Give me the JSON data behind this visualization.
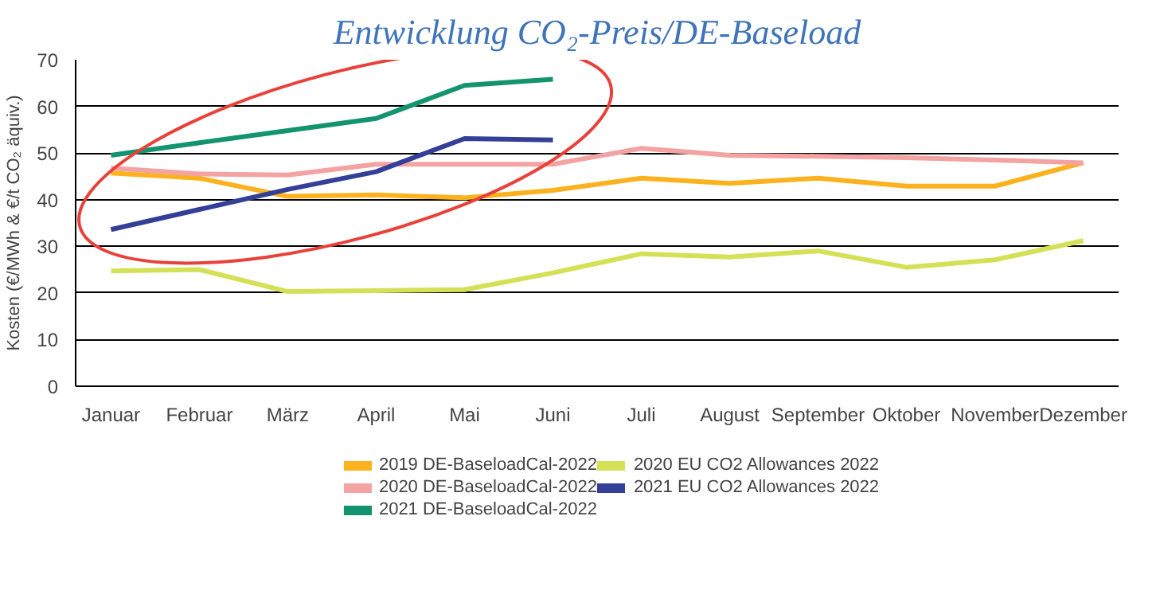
{
  "chart_data": {
    "type": "line",
    "title": "Entwicklung CO₂-Preis/DE-Baseload",
    "ylabel": "Kosten (€/MWh & €/t CO₂ äquiv.)",
    "categories": [
      "Januar",
      "Februar",
      "März",
      "April",
      "Mai",
      "Juni",
      "Juli",
      "August",
      "September",
      "Oktober",
      "November",
      "Dezember"
    ],
    "ylim": [
      0,
      70
    ],
    "yticks": [
      0,
      10,
      20,
      30,
      40,
      50,
      60,
      70
    ],
    "grid": "y",
    "legend": "bottom",
    "line_style": "solid",
    "series": [
      {
        "name": "2019 DE-BaseloadCal-2022",
        "color": "#fbb21e",
        "values": [
          45.7,
          44.6,
          40.7,
          41,
          40.4,
          42,
          44.6,
          43.5,
          44.6,
          42.9,
          42.9,
          47.9
        ]
      },
      {
        "name": "2020 DE-BaseloadCal-2022",
        "color": "#f4a3a3",
        "values": [
          46.8,
          45.5,
          45.3,
          47.6,
          47.6,
          47.6,
          51,
          49.5,
          49.3,
          49,
          48.5,
          47.9
        ]
      },
      {
        "name": "2021 DE-BaseloadCal-2022",
        "color": "#14946e",
        "values": [
          49.5,
          52.2,
          54.8,
          57.4,
          64.5,
          65.8,
          null,
          null,
          null,
          null,
          null,
          null
        ]
      },
      {
        "name": "2020 EU CO2 Allowances 2022",
        "color": "#d4e157",
        "values": [
          24.7,
          25,
          20.3,
          20.5,
          20.7,
          24.3,
          28.4,
          27.7,
          29,
          25.5,
          27.1,
          31.2
        ]
      },
      {
        "name": "2021 EU CO2 Allowances 2022",
        "color": "#343f98",
        "values": [
          33.6,
          37.9,
          42.2,
          46,
          53.1,
          52.8,
          null,
          null,
          null,
          null,
          null,
          null
        ]
      }
    ]
  }
}
